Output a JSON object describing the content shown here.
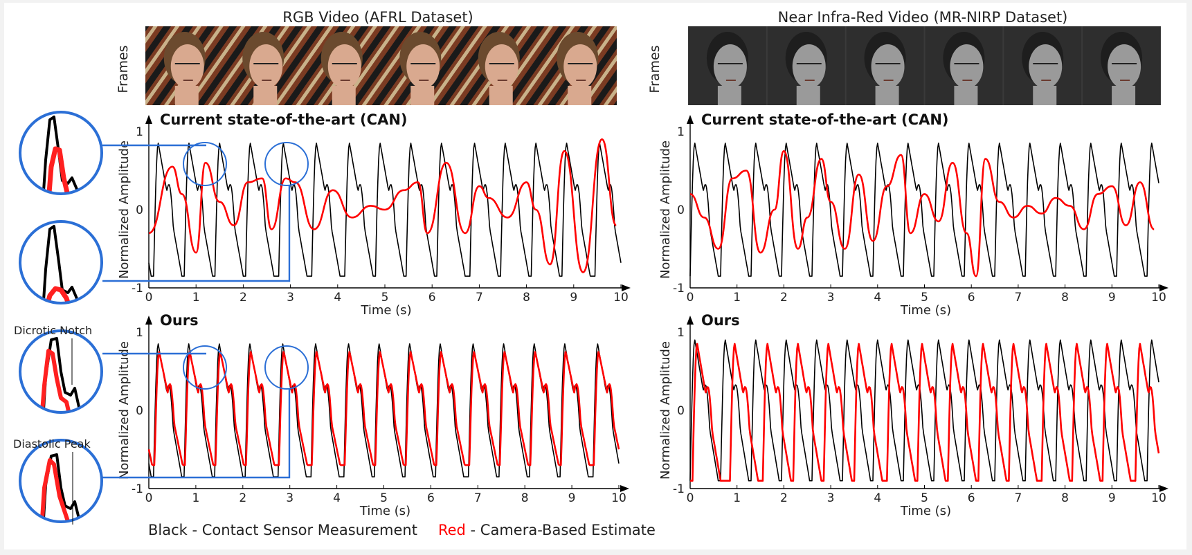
{
  "figure": {
    "left_column_title": "RGB Video (AFRL Dataset)",
    "right_column_title": "Near Infra-Red Video (MR-NIRP Dataset)",
    "frames_label": "Frames",
    "annotations": {
      "dicrotic_notch": "Dicrotic Notch",
      "diastolic_peak": "Diastolic Peak"
    },
    "legend": {
      "black_key": "Black",
      "black_text": " - Contact Sensor Measurement",
      "red_key": "Red",
      "red_text": " - Camera-Based Estimate"
    },
    "colors": {
      "contact": "#000000",
      "camera": "#ff0000",
      "zoom": "#2b6fd6"
    }
  },
  "chart_data": [
    {
      "type": "line",
      "title": "Current state-of-the-art (CAN)",
      "xlabel": "Time (s)",
      "ylabel": "Normalized Amplitude",
      "xlim": [
        0,
        10
      ],
      "ylim": [
        -1,
        1
      ],
      "xticks": [
        0,
        1,
        2,
        3,
        4,
        5,
        6,
        7,
        8,
        9,
        10
      ],
      "yticks": [
        -1,
        0,
        1
      ],
      "series": [
        {
          "color": "#000000",
          "beat_times": [
            0.1,
            0.75,
            1.4,
            2.05,
            2.75,
            3.45,
            4.15,
            4.8,
            5.45,
            6.1,
            6.8,
            7.45,
            8.1,
            8.75,
            9.45
          ],
          "peak": 0.85,
          "trough": -0.85
        },
        {
          "color": "#ff0000",
          "x": [
            0,
            0.5,
            0.7,
            1.0,
            1.2,
            1.5,
            1.8,
            2.1,
            2.4,
            2.6,
            2.9,
            3.1,
            3.5,
            3.9,
            4.3,
            4.7,
            5.0,
            5.4,
            5.7,
            5.9,
            6.3,
            6.7,
            7.0,
            7.2,
            7.6,
            8.0,
            8.2,
            8.5,
            8.8,
            9.2,
            9.6,
            9.9
          ],
          "y": [
            -0.3,
            0.55,
            0.2,
            -0.55,
            0.6,
            0.1,
            -0.2,
            0.35,
            0.4,
            -0.25,
            0.4,
            0.35,
            -0.25,
            0.25,
            -0.1,
            0.05,
            0.0,
            0.25,
            0.35,
            -0.3,
            0.6,
            -0.3,
            0.3,
            0.15,
            -0.1,
            0.35,
            0.0,
            -0.7,
            0.75,
            -0.8,
            0.9,
            -0.2
          ]
        }
      ]
    },
    {
      "type": "line",
      "title": "Current state-of-the-art (CAN)",
      "xlabel": "Time (s)",
      "ylabel": "Normalized Amplitude",
      "xlim": [
        0,
        10
      ],
      "ylim": [
        -1,
        1
      ],
      "xticks": [
        0,
        1,
        2,
        3,
        4,
        5,
        6,
        7,
        8,
        9,
        10
      ],
      "yticks": [
        -1,
        0,
        1
      ],
      "series": [
        {
          "color": "#000000",
          "beat_times": [
            0.65,
            1.3,
            1.95,
            2.6,
            3.25,
            3.9,
            4.55,
            5.2,
            5.85,
            6.5,
            7.15,
            7.8,
            8.45,
            9.1,
            9.75
          ],
          "peak": 0.85,
          "trough": -0.85
        },
        {
          "color": "#ff0000",
          "x": [
            0,
            0.3,
            0.6,
            0.9,
            1.2,
            1.5,
            1.8,
            2.0,
            2.3,
            2.5,
            2.8,
            3.0,
            3.3,
            3.6,
            3.9,
            4.2,
            4.5,
            4.7,
            5.0,
            5.3,
            5.6,
            5.9,
            6.1,
            6.3,
            6.6,
            6.9,
            7.2,
            7.5,
            7.8,
            8.1,
            8.4,
            8.7,
            9.0,
            9.3,
            9.6,
            9.9
          ],
          "y": [
            0.2,
            -0.1,
            -0.5,
            0.4,
            0.5,
            -0.55,
            0.0,
            0.75,
            -0.5,
            -0.1,
            0.65,
            0.1,
            -0.5,
            0.45,
            -0.4,
            0.3,
            0.7,
            -0.3,
            0.2,
            -0.15,
            0.6,
            -0.3,
            -0.85,
            0.65,
            0.1,
            -0.1,
            0.05,
            -0.05,
            0.15,
            0.05,
            -0.25,
            0.2,
            0.3,
            -0.2,
            0.35,
            -0.25
          ]
        }
      ]
    },
    {
      "type": "line",
      "title": "Ours",
      "xlabel": "Time (s)",
      "ylabel": "Normalized Amplitude",
      "xlim": [
        0,
        10
      ],
      "ylim": [
        -1,
        1
      ],
      "xticks": [
        0,
        1,
        2,
        3,
        4,
        5,
        6,
        7,
        8,
        9,
        10
      ],
      "yticks": [
        -1,
        0,
        1
      ],
      "series": [
        {
          "color": "#000000",
          "beat_times": [
            0.1,
            0.75,
            1.4,
            2.05,
            2.75,
            3.45,
            4.15,
            4.8,
            5.45,
            6.1,
            6.8,
            7.45,
            8.1,
            8.75,
            9.45
          ],
          "peak": 0.85,
          "trough": -0.85
        },
        {
          "color": "#ff0000",
          "beat_times": [
            0.12,
            0.77,
            1.42,
            2.07,
            2.77,
            3.47,
            4.17,
            4.82,
            5.47,
            6.12,
            6.82,
            7.47,
            8.12,
            8.77,
            9.47
          ],
          "peak": 0.75,
          "trough": -0.7
        }
      ]
    },
    {
      "type": "line",
      "title": "Ours",
      "xlabel": "Time (s)",
      "ylabel": "Normalized Amplitude",
      "xlim": [
        0,
        10
      ],
      "ylim": [
        -1,
        1
      ],
      "xticks": [
        0,
        1,
        2,
        3,
        4,
        5,
        6,
        7,
        8,
        9,
        10
      ],
      "yticks": [
        -1,
        0,
        1
      ],
      "series": [
        {
          "color": "#000000",
          "beat_times": [
            0.65,
            1.3,
            1.95,
            2.6,
            3.25,
            3.9,
            4.55,
            5.2,
            5.85,
            6.5,
            7.15,
            7.8,
            8.45,
            9.1,
            9.75
          ],
          "peak": 0.9,
          "trough": -0.9
        },
        {
          "color": "#ff0000",
          "beat_times": [
            0.05,
            0.85,
            1.55,
            2.2,
            2.85,
            3.5,
            4.2,
            4.85,
            5.5,
            6.15,
            6.8,
            7.5,
            8.15,
            8.8,
            9.5
          ],
          "peak": 0.85,
          "trough": -0.9
        }
      ]
    }
  ]
}
